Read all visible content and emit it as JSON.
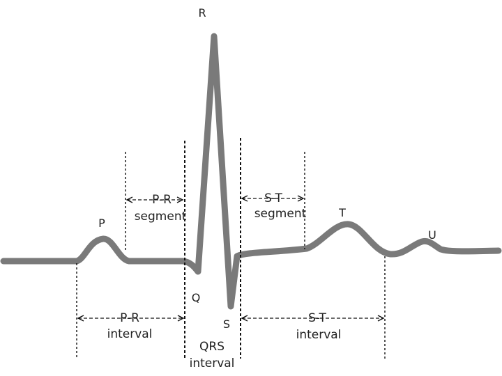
{
  "colors": {
    "waveform": "#7a7a7a",
    "lines": "#111111",
    "text": "#222222",
    "background": "#ffffff"
  },
  "waves": {
    "p": "P",
    "q": "Q",
    "r": "R",
    "s": "S",
    "t": "T",
    "u": "U"
  },
  "segments": {
    "pr_segment": [
      "P-R",
      "segment"
    ],
    "st_segment": [
      "S-T",
      "segment"
    ]
  },
  "intervals": {
    "pr_interval": [
      "P-R",
      "interval"
    ],
    "st_interval": [
      "S-T",
      "interval"
    ],
    "qrs_interval": [
      "QRS",
      "interval"
    ]
  }
}
